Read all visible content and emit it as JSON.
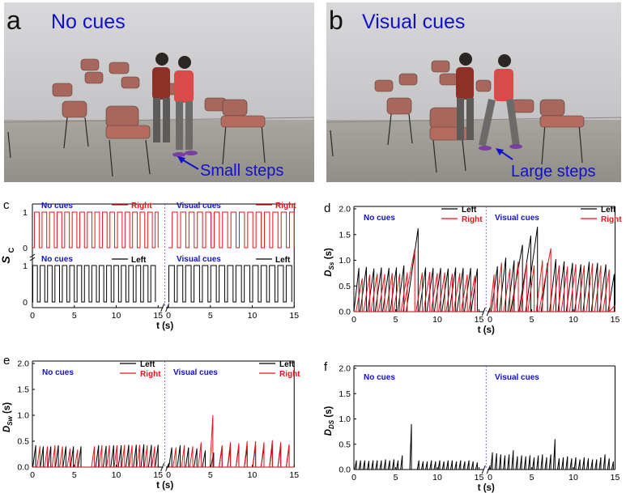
{
  "photos": [
    {
      "letter": "a",
      "title": "No cues",
      "step_label": "Small steps"
    },
    {
      "letter": "b",
      "title": "Visual cues",
      "step_label": "Large steps"
    }
  ],
  "colors": {
    "cue_blue": "#1111cc",
    "left_black": "#000000",
    "right_red": "#e8141a",
    "divider": "#5555dd"
  },
  "chart_data": [
    {
      "panel": "c",
      "type": "line",
      "ylabel": "S",
      "ylabel_sub": "C",
      "xlabel": "t (s)",
      "left_title": "No cues",
      "right_title": "Visual cues",
      "xticks": [
        0,
        5,
        10,
        15
      ],
      "xlim": [
        0,
        15
      ],
      "upper_yticks": [
        0,
        1
      ],
      "lower_yticks": [
        0,
        1
      ],
      "upper_legend": "Right",
      "lower_legend": "Left",
      "left_upper": {
        "name": "Right",
        "color": "#e8141a",
        "step_cycle_s": 0.9,
        "duty": 0.62,
        "start": 0.25
      },
      "left_lower": {
        "name": "Left",
        "color": "#000000",
        "step_cycle_s": 0.88,
        "duty": 0.62,
        "start": 0.05
      },
      "right_upper": {
        "name": "Right",
        "color": "#e8141a",
        "step_cycle_s": 1.0,
        "duty": 0.62,
        "start": 0.45
      },
      "right_lower": {
        "name": "Left",
        "color": "#000000",
        "step_cycle_s": 1.0,
        "duty": 0.66,
        "start": 0.05
      }
    },
    {
      "panel": "d",
      "type": "line",
      "ylabel": "D",
      "ylabel_sub": "Ss",
      "yunit": "(s)",
      "xlabel": "t (s)",
      "left_title": "No cues",
      "right_title": "Visual cues",
      "ylim": [
        0,
        2.0
      ],
      "yticks": [
        0.0,
        0.5,
        1.0,
        1.5,
        2.0
      ],
      "xticks": [
        0,
        5,
        10,
        15
      ],
      "series": [
        {
          "name": "Left",
          "color": "#000000",
          "left_peaks": [
            [
              0.6,
              0.85
            ],
            [
              1.5,
              0.87
            ],
            [
              2.4,
              0.84
            ],
            [
              3.3,
              0.86
            ],
            [
              4.2,
              0.85
            ],
            [
              5.1,
              0.86
            ],
            [
              6.0,
              0.9
            ],
            [
              7.7,
              1.62
            ],
            [
              8.6,
              0.86
            ],
            [
              9.5,
              0.85
            ],
            [
              10.4,
              0.85
            ],
            [
              11.3,
              0.84
            ],
            [
              12.2,
              0.86
            ],
            [
              13.1,
              0.85
            ],
            [
              14.0,
              0.85
            ],
            [
              14.8,
              0.84
            ]
          ],
          "right_peaks": [
            [
              0.9,
              0.88
            ],
            [
              1.9,
              1.05
            ],
            [
              2.9,
              1.0
            ],
            [
              3.9,
              1.3
            ],
            [
              4.9,
              1.48
            ],
            [
              5.7,
              1.65
            ],
            [
              6.9,
              0.95
            ],
            [
              7.9,
              1.02
            ],
            [
              8.9,
              0.98
            ],
            [
              9.9,
              0.95
            ],
            [
              10.9,
              0.92
            ],
            [
              11.9,
              0.97
            ],
            [
              12.9,
              0.95
            ],
            [
              13.9,
              0.92
            ],
            [
              14.9,
              0.73
            ]
          ]
        },
        {
          "name": "Right",
          "color": "#e8141a",
          "left_peaks": [
            [
              1.0,
              0.65
            ],
            [
              1.9,
              0.72
            ],
            [
              2.8,
              0.74
            ],
            [
              3.7,
              0.73
            ],
            [
              4.6,
              0.75
            ],
            [
              5.5,
              0.74
            ],
            [
              6.4,
              0.76
            ],
            [
              7.3,
              1.22
            ],
            [
              8.2,
              0.76
            ],
            [
              9.1,
              0.77
            ],
            [
              10.0,
              0.75
            ],
            [
              10.9,
              0.76
            ],
            [
              11.8,
              0.74
            ],
            [
              12.7,
              0.75
            ],
            [
              13.6,
              0.72
            ],
            [
              14.5,
              0.7
            ]
          ],
          "right_peaks": [
            [
              0.5,
              0.72
            ],
            [
              1.4,
              0.95
            ],
            [
              2.4,
              0.84
            ],
            [
              3.4,
              0.98
            ],
            [
              4.4,
              0.95
            ],
            [
              5.3,
              0.9
            ],
            [
              6.3,
              1.0
            ],
            [
              7.3,
              1.23
            ],
            [
              8.3,
              0.9
            ],
            [
              9.3,
              0.88
            ],
            [
              10.3,
              0.92
            ],
            [
              11.3,
              0.9
            ],
            [
              12.3,
              0.94
            ],
            [
              13.3,
              0.9
            ],
            [
              14.3,
              0.82
            ],
            [
              15.0,
              0.12
            ]
          ]
        }
      ]
    },
    {
      "panel": "e",
      "type": "line",
      "ylabel": "D",
      "ylabel_sub": "Sw",
      "yunit": "(s)",
      "xlabel": "t (s)",
      "left_title": "No cues",
      "right_title": "Visual cues",
      "ylim": [
        0,
        2.0
      ],
      "yticks": [
        0.0,
        0.5,
        1.0,
        1.5,
        2.0
      ],
      "xticks": [
        0,
        5,
        10,
        15
      ],
      "series": [
        {
          "name": "Left",
          "color": "#000000",
          "left_peaks": [
            [
              0.4,
              0.42
            ],
            [
              1.3,
              0.4
            ],
            [
              2.2,
              0.4
            ],
            [
              3.1,
              0.42
            ],
            [
              4.0,
              0.4
            ],
            [
              4.9,
              0.4
            ],
            [
              5.8,
              0.4
            ],
            [
              7.9,
              0.42
            ],
            [
              8.8,
              0.41
            ],
            [
              9.7,
              0.42
            ],
            [
              10.6,
              0.42
            ],
            [
              11.5,
              0.43
            ],
            [
              12.4,
              0.43
            ],
            [
              13.3,
              0.44
            ],
            [
              14.2,
              0.43
            ],
            [
              15.0,
              0.43
            ]
          ],
          "right_peaks": [
            [
              0.4,
              0.38
            ],
            [
              1.4,
              0.42
            ],
            [
              2.4,
              0.38
            ],
            [
              3.4,
              0.36
            ],
            [
              4.4,
              0.32
            ],
            [
              5.4,
              0.28
            ],
            [
              6.4,
              0.4
            ],
            [
              7.4,
              0.38
            ],
            [
              8.4,
              0.4
            ],
            [
              9.4,
              0.4
            ],
            [
              10.4,
              0.42
            ],
            [
              11.4,
              0.4
            ],
            [
              12.4,
              0.42
            ],
            [
              13.4,
              0.4
            ],
            [
              14.4,
              0.42
            ]
          ]
        },
        {
          "name": "Right",
          "color": "#e8141a",
          "left_peaks": [
            [
              0.9,
              0.4
            ],
            [
              1.8,
              0.4
            ],
            [
              2.7,
              0.42
            ],
            [
              3.6,
              0.4
            ],
            [
              4.5,
              0.36
            ],
            [
              5.4,
              0.34
            ],
            [
              7.4,
              0.4
            ],
            [
              8.3,
              0.42
            ],
            [
              9.2,
              0.42
            ],
            [
              10.1,
              0.42
            ],
            [
              11.0,
              0.43
            ],
            [
              11.9,
              0.42
            ],
            [
              12.8,
              0.43
            ],
            [
              13.7,
              0.42
            ],
            [
              14.6,
              0.4
            ]
          ],
          "right_peaks": [
            [
              0.9,
              0.38
            ],
            [
              1.9,
              0.42
            ],
            [
              2.9,
              0.4
            ],
            [
              3.9,
              0.48
            ],
            [
              5.3,
              1.0
            ],
            [
              6.4,
              0.42
            ],
            [
              7.4,
              0.48
            ],
            [
              8.4,
              0.46
            ],
            [
              9.4,
              0.5
            ],
            [
              10.4,
              0.5
            ],
            [
              11.4,
              0.48
            ],
            [
              12.4,
              0.52
            ],
            [
              13.4,
              0.48
            ],
            [
              14.4,
              0.44
            ]
          ]
        }
      ]
    },
    {
      "panel": "f",
      "type": "line",
      "ylabel": "D",
      "ylabel_sub": "DS",
      "yunit": "(s)",
      "xlabel": "t (s)",
      "left_title": "No cues",
      "right_title": "Visual cues",
      "ylim": [
        0,
        2.0
      ],
      "yticks": [
        0.0,
        0.5,
        1.0,
        1.5,
        2.0
      ],
      "xticks": [
        0,
        5,
        10,
        15
      ],
      "series": [
        {
          "name": "DS",
          "color": "#000000",
          "left_peaks": [
            [
              0.3,
              0.18
            ],
            [
              0.8,
              0.18
            ],
            [
              1.3,
              0.18
            ],
            [
              1.8,
              0.17
            ],
            [
              2.3,
              0.18
            ],
            [
              2.8,
              0.18
            ],
            [
              3.3,
              0.18
            ],
            [
              3.8,
              0.2
            ],
            [
              4.3,
              0.18
            ],
            [
              4.8,
              0.2
            ],
            [
              5.3,
              0.18
            ],
            [
              5.8,
              0.28
            ],
            [
              6.9,
              0.9
            ],
            [
              7.8,
              0.18
            ],
            [
              8.3,
              0.16
            ],
            [
              8.8,
              0.16
            ],
            [
              9.3,
              0.18
            ],
            [
              9.8,
              0.16
            ],
            [
              10.3,
              0.18
            ],
            [
              10.8,
              0.16
            ],
            [
              11.3,
              0.18
            ],
            [
              11.8,
              0.18
            ],
            [
              12.3,
              0.16
            ],
            [
              12.8,
              0.18
            ],
            [
              13.3,
              0.16
            ],
            [
              13.8,
              0.18
            ],
            [
              14.3,
              0.16
            ],
            [
              14.8,
              0.14
            ]
          ],
          "right_peaks": [
            [
              0.3,
              0.34
            ],
            [
              0.8,
              0.32
            ],
            [
              1.3,
              0.3
            ],
            [
              1.8,
              0.28
            ],
            [
              2.3,
              0.3
            ],
            [
              2.8,
              0.38
            ],
            [
              3.3,
              0.26
            ],
            [
              3.8,
              0.28
            ],
            [
              4.3,
              0.26
            ],
            [
              4.8,
              0.28
            ],
            [
              5.3,
              0.24
            ],
            [
              5.8,
              0.28
            ],
            [
              6.3,
              0.3
            ],
            [
              6.8,
              0.24
            ],
            [
              7.3,
              0.3
            ],
            [
              7.8,
              0.6
            ],
            [
              8.3,
              0.22
            ],
            [
              8.8,
              0.24
            ],
            [
              9.3,
              0.26
            ],
            [
              9.8,
              0.22
            ],
            [
              10.3,
              0.24
            ],
            [
              10.8,
              0.2
            ],
            [
              11.3,
              0.24
            ],
            [
              11.8,
              0.22
            ],
            [
              12.3,
              0.2
            ],
            [
              12.8,
              0.2
            ],
            [
              13.3,
              0.24
            ],
            [
              13.8,
              0.3
            ],
            [
              14.3,
              0.22
            ],
            [
              14.8,
              0.16
            ]
          ]
        }
      ]
    }
  ]
}
